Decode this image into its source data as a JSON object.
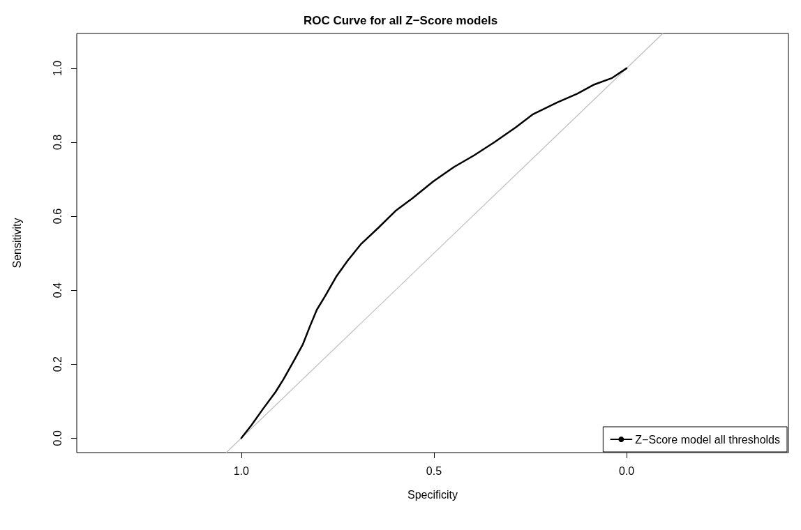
{
  "chart_data": {
    "type": "line",
    "title": "ROC Curve for all Z−Score models",
    "xlabel": "Specificity",
    "ylabel": "Sensitivity",
    "xlim": [
      1.427,
      -0.42
    ],
    "ylim": [
      -0.039,
      1.094
    ],
    "xticks": [
      {
        "value": 1,
        "label": "1.0"
      },
      {
        "value": 0.5,
        "label": "0.5"
      },
      {
        "value": 0,
        "label": "0.0"
      }
    ],
    "yticks": [
      {
        "value": 0,
        "label": "0.0"
      },
      {
        "value": 0.2,
        "label": "0.2"
      },
      {
        "value": 0.4,
        "label": "0.4"
      },
      {
        "value": 0.6,
        "label": "0.6"
      },
      {
        "value": 0.8,
        "label": "0.8"
      },
      {
        "value": 1,
        "label": "1.0"
      }
    ],
    "grid": false,
    "legend": "bottom right",
    "marker": "none",
    "line_style": "solid",
    "series": [
      {
        "color": "#bebebe",
        "x": [
          1.039,
          -0.094
        ],
        "values": [
          -0.039,
          1.094
        ]
      },
      {
        "name": "Z−Score model all thresholds",
        "color": "#000000",
        "x": [
          1,
          0.973,
          0.943,
          0.911,
          0.89,
          0.861,
          0.84,
          0.822,
          0.804,
          0.783,
          0.754,
          0.724,
          0.689,
          0.644,
          0.6,
          0.555,
          0.502,
          0.448,
          0.395,
          0.342,
          0.288,
          0.244,
          0.181,
          0.128,
          0.084,
          0.039,
          0
        ],
        "values": [
          0,
          0.036,
          0.08,
          0.125,
          0.16,
          0.214,
          0.254,
          0.302,
          0.347,
          0.383,
          0.436,
          0.48,
          0.525,
          0.569,
          0.614,
          0.649,
          0.694,
          0.733,
          0.765,
          0.801,
          0.84,
          0.875,
          0.907,
          0.931,
          0.956,
          0.973,
          1
        ]
      }
    ]
  }
}
